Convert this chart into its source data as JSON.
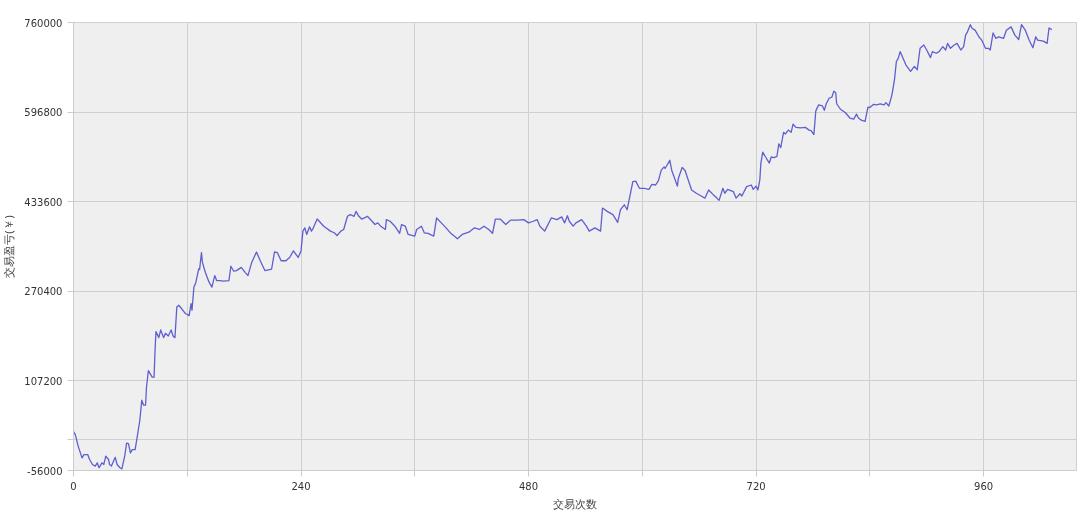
{
  "chart_data": {
    "type": "line",
    "xlabel": "交易次数",
    "ylabel": "交易盈亏(￥)",
    "xlim": [
      0,
      1058
    ],
    "ylim": [
      -56000,
      760000
    ],
    "xticks": [
      0,
      {
        "value": 120,
        "label": null
      },
      240,
      {
        "value": 360,
        "label": null
      },
      480,
      {
        "value": 600,
        "label": null
      },
      720,
      {
        "value": 840,
        "label": null
      },
      960
    ],
    "yticks": [
      -56000,
      {
        "value": 0,
        "label": null
      },
      107200,
      270400,
      433600,
      596800,
      760000
    ],
    "grid": true,
    "marker": "none",
    "line_style": "solid",
    "series": [
      {
        "color": "#5f5fd0",
        "x": [
          0,
          2,
          5,
          9,
          11,
          15,
          17,
          20,
          23,
          25,
          27,
          30,
          32,
          34,
          37,
          38,
          40,
          44,
          46,
          49,
          51,
          54,
          56,
          58,
          60,
          62,
          65,
          67,
          70,
          72,
          74,
          76,
          77,
          79,
          83,
          85,
          86,
          87,
          90,
          92,
          95,
          97,
          100,
          103,
          105,
          107,
          109,
          111,
          114,
          118,
          122,
          124,
          125,
          127,
          129,
          132,
          133,
          135,
          136,
          139,
          143,
          146,
          149,
          151,
          155,
          158,
          164,
          166,
          169,
          172,
          177,
          181,
          184,
          188,
          193,
          197,
          202,
          209,
          212,
          215,
          219,
          224,
          228,
          232,
          237,
          240,
          242,
          244,
          246,
          249,
          251,
          253,
          257,
          264,
          271,
          275,
          278,
          282,
          285,
          289,
          292,
          296,
          298,
          301,
          304,
          308,
          310,
          315,
          318,
          321,
          324,
          329,
          330,
          334,
          339,
          344,
          346,
          350,
          353,
          360,
          362,
          367,
          370,
          374,
          380,
          383,
          388,
          393,
          398,
          405,
          410,
          417,
          423,
          428,
          433,
          438,
          442,
          445,
          450,
          456,
          461,
          468,
          475,
          480,
          485,
          489,
          492,
          497,
          504,
          510,
          515,
          518,
          521,
          523,
          527,
          530,
          536,
          541,
          544,
          550,
          556,
          558,
          563,
          569,
          574,
          577,
          581,
          584,
          590,
          593,
          597,
          602,
          607,
          610,
          614,
          617,
          620,
          623,
          624,
          626,
          629,
          631,
          637,
          638,
          642,
          645,
          652,
          657,
          663,
          666,
          670,
          675,
          677,
          681,
          685,
          687,
          690,
          696,
          699,
          703,
          705,
          710,
          715,
          717,
          720,
          722,
          724,
          725,
          727,
          730,
          734,
          736,
          739,
          742,
          744,
          746,
          749,
          751,
          754,
          757,
          759,
          762,
          767,
          772,
          776,
          778,
          781,
          783,
          786,
          790,
          792,
          794,
          797,
          800,
          802,
          804,
          805,
          809,
          814,
          819,
          823,
          826,
          828,
          831,
          835,
          838,
          840,
          844,
          847,
          851,
          855,
          857,
          860,
          863,
          864,
          866,
          868,
          870,
          872,
          875,
          878,
          883,
          887,
          890,
          893,
          897,
          900,
          904,
          906,
          910,
          913,
          917,
          920,
          922,
          925,
          929,
          932,
          936,
          939,
          941,
          943,
          946,
          948,
          951,
          955,
          958,
          962,
          965,
          967,
          970,
          973,
          976,
          981,
          984,
          989,
          993,
          997,
          1000,
          1004,
          1008,
          1012,
          1015,
          1017,
          1023,
          1027,
          1029,
          1032
        ],
        "values": [
          15000,
          9000,
          -12000,
          -33000,
          -27000,
          -27000,
          -36000,
          -45000,
          -48000,
          -42000,
          -51000,
          -42000,
          -45000,
          -30000,
          -36000,
          -45000,
          -48000,
          -32000,
          -45000,
          -51000,
          -53000,
          -30000,
          -6000,
          -7000,
          -24000,
          -18000,
          -18000,
          3000,
          36000,
          72000,
          63000,
          63000,
          96000,
          126000,
          114000,
          114000,
          162000,
          197000,
          186000,
          200000,
          186000,
          194000,
          189000,
          200000,
          189000,
          186000,
          242000,
          245000,
          239000,
          230000,
          226000,
          248000,
          236000,
          278000,
          286000,
          311000,
          310000,
          341000,
          323000,
          305000,
          287000,
          278000,
          299000,
          290000,
          290000,
          289000,
          290000,
          316000,
          307000,
          308000,
          314000,
          305000,
          299000,
          323000,
          342000,
          326000,
          308000,
          311000,
          342000,
          341000,
          326000,
          326000,
          332000,
          344000,
          332000,
          344000,
          380000,
          386000,
          374000,
          388000,
          380000,
          386000,
          402000,
          389000,
          380000,
          377000,
          372000,
          380000,
          383000,
          407000,
          410000,
          407000,
          416000,
          407000,
          402000,
          405000,
          407000,
          398000,
          392000,
          395000,
          389000,
          383000,
          401000,
          398000,
          389000,
          376000,
          392000,
          389000,
          374000,
          371000,
          383000,
          389000,
          377000,
          376000,
          371000,
          404000,
          395000,
          386000,
          376000,
          366000,
          374000,
          378000,
          386000,
          383000,
          389000,
          383000,
          376000,
          402000,
          402000,
          392000,
          400000,
          400000,
          401000,
          395000,
          398000,
          401000,
          389000,
          380000,
          404000,
          401000,
          406000,
          395000,
          408000,
          398000,
          389000,
          395000,
          401000,
          389000,
          380000,
          386000,
          380000,
          422000,
          416000,
          410000,
          396000,
          419000,
          428000,
          419000,
          470000,
          471000,
          458000,
          458000,
          456000,
          465000,
          464000,
          472000,
          491000,
          497000,
          494000,
          500000,
          509000,
          491000,
          462000,
          476000,
          496000,
          491000,
          455000,
          449000,
          443000,
          440000,
          455000,
          446000,
          443000,
          436000,
          458000,
          449000,
          456000,
          452000,
          440000,
          448000,
          444000,
          461000,
          464000,
          456000,
          462000,
          455000,
          474000,
          503000,
          524000,
          515000,
          504000,
          515000,
          514000,
          516000,
          539000,
          532000,
          560000,
          557000,
          564000,
          560000,
          575000,
          569000,
          568000,
          569000,
          564000,
          563000,
          556000,
          599000,
          610000,
          608000,
          600000,
          612000,
          622000,
          624000,
          635000,
          632000,
          612000,
          602000,
          596000,
          586000,
          584000,
          593000,
          586000,
          582000,
          580000,
          606000,
          605000,
          611000,
          610000,
          612000,
          610000,
          614000,
          608000,
          626000,
          635000,
          656000,
          689000,
          695000,
          707000,
          695000,
          683000,
          671000,
          680000,
          674000,
          713000,
          719000,
          710000,
          696000,
          707000,
          704000,
          707000,
          716000,
          710000,
          722000,
          713000,
          719000,
          722000,
          710000,
          716000,
          737000,
          743000,
          756000,
          749000,
          746000,
          734000,
          728000,
          713000,
          713000,
          710000,
          741000,
          731000,
          734000,
          731000,
          746000,
          752000,
          737000,
          729000,
          756000,
          746000,
          728000,
          714000,
          734000,
          728000,
          726000,
          722000,
          750000,
          747000
        ]
      }
    ]
  }
}
